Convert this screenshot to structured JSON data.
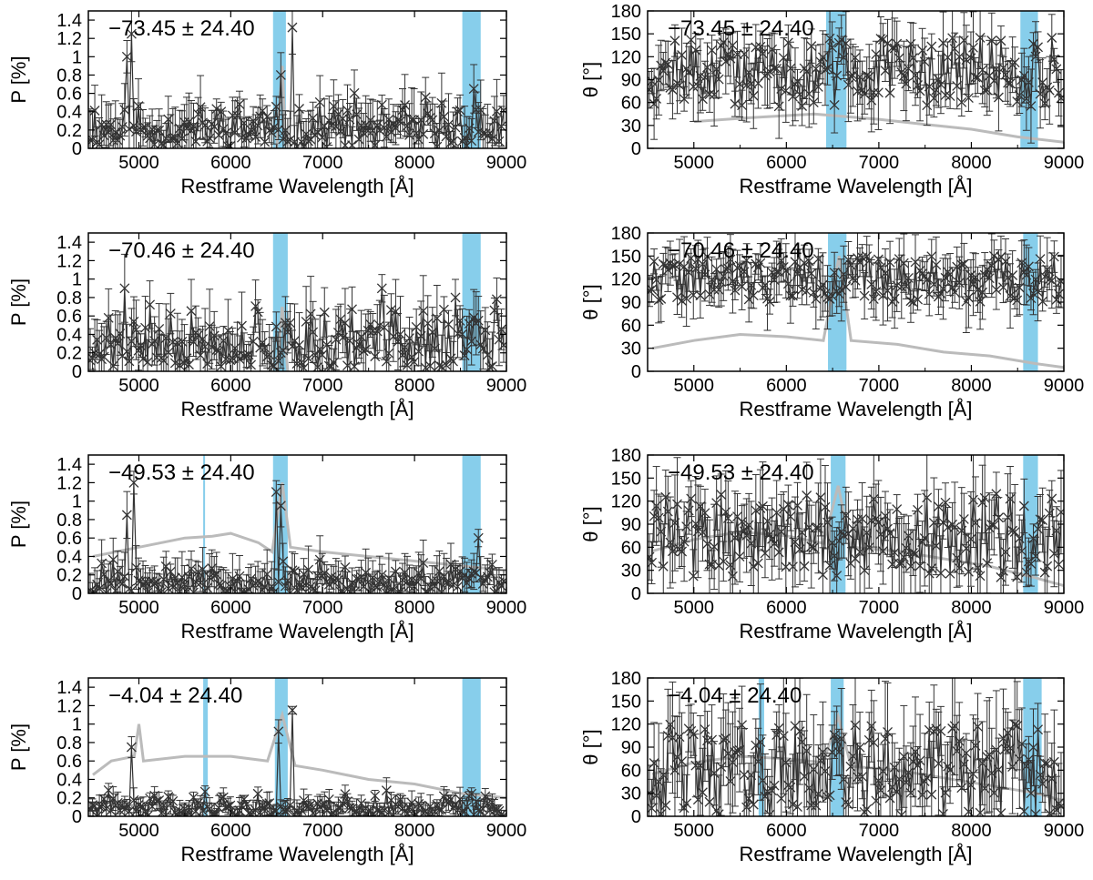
{
  "figure": {
    "xlabel": "Restframe Wavelength [Å]",
    "colors": {
      "data": "#333333",
      "spectrum": "#bbbbbb",
      "band": "#87ceeb",
      "frame": "#000000"
    }
  },
  "chart_data": [
    {
      "type": "scatter",
      "panel": "P-1",
      "quantity": "P",
      "seed": 11,
      "title": "",
      "xlabel": "Restframe Wavelength [Å]",
      "ylabel": "P [%]",
      "xlim": [
        4450,
        9000
      ],
      "ylim": [
        0,
        1.5
      ],
      "xticks": [
        5000,
        6000,
        7000,
        8000,
        9000
      ],
      "yticks": [
        0,
        0.2,
        0.4,
        0.6,
        0.8,
        1,
        1.2,
        1.4
      ],
      "annotation": "−73.45 ± 24.40",
      "bands": [
        [
          6460,
          6600
        ],
        [
          8520,
          8720
        ]
      ],
      "series": [
        {
          "name": "polarization",
          "base": 0.22,
          "spread": 0.2,
          "err": 0.25,
          "peaks": [
            [
              4920,
              1.25
            ],
            [
              4880,
              1.0
            ],
            [
              6680,
              1.32
            ],
            [
              6540,
              0.8
            ],
            [
              8650,
              0.65
            ]
          ]
        },
        {
          "name": "flux spectrum (scaled)",
          "points": [
            [
              6500,
              0.0
            ],
            [
              6560,
              0.9
            ],
            [
              6600,
              0.0
            ]
          ]
        }
      ]
    },
    {
      "type": "scatter",
      "panel": "theta-1",
      "quantity": "theta",
      "seed": 12,
      "title": "",
      "xlabel": "Restframe Wavelength [Å]",
      "ylabel": "θ [°]",
      "xlim": [
        4500,
        9000
      ],
      "ylim": [
        0,
        180
      ],
      "xticks": [
        5000,
        6000,
        7000,
        8000,
        9000
      ],
      "yticks": [
        0,
        30,
        60,
        90,
        120,
        150,
        180
      ],
      "annotation": "−73.45 ± 24.40",
      "bands": [
        [
          6430,
          6650
        ],
        [
          8530,
          8720
        ]
      ],
      "series": [
        {
          "name": "polarization angle",
          "base": 100,
          "spread": 45,
          "err": 35,
          "peaks": []
        },
        {
          "name": "flux spectrum (scaled)",
          "points": [
            [
              5000,
              35
            ],
            [
              5600,
              40
            ],
            [
              6300,
              45
            ],
            [
              7000,
              38
            ],
            [
              7600,
              30
            ],
            [
              8000,
              25
            ],
            [
              8500,
              15
            ],
            [
              9000,
              8
            ]
          ]
        }
      ]
    },
    {
      "type": "scatter",
      "panel": "P-2",
      "quantity": "P",
      "seed": 21,
      "title": "",
      "xlabel": "Restframe Wavelength [Å]",
      "ylabel": "P [%]",
      "xlim": [
        4450,
        9000
      ],
      "ylim": [
        0,
        1.5
      ],
      "xticks": [
        5000,
        6000,
        7000,
        8000,
        9000
      ],
      "yticks": [
        0,
        0.2,
        0.4,
        0.6,
        0.8,
        1,
        1.2,
        1.4
      ],
      "annotation": "−70.46 ± 24.40",
      "bands": [
        [
          6460,
          6620
        ],
        [
          8520,
          8720
        ]
      ],
      "series": [
        {
          "name": "polarization",
          "base": 0.3,
          "spread": 0.25,
          "err": 0.3,
          "peaks": [
            [
              4850,
              0.9
            ],
            [
              7650,
              0.9
            ],
            [
              8450,
              0.8
            ]
          ]
        },
        {
          "name": "flux spectrum (scaled)",
          "points": [
            [
              6500,
              0.0
            ],
            [
              6560,
              0.7
            ],
            [
              6620,
              0.0
            ]
          ]
        }
      ]
    },
    {
      "type": "scatter",
      "panel": "theta-2",
      "quantity": "theta",
      "seed": 22,
      "title": "",
      "xlabel": "Restframe Wavelength [Å]",
      "ylabel": "θ [°]",
      "xlim": [
        4500,
        9000
      ],
      "ylim": [
        0,
        180
      ],
      "xticks": [
        5000,
        6000,
        7000,
        8000,
        9000
      ],
      "yticks": [
        0,
        30,
        60,
        90,
        120,
        150,
        180
      ],
      "annotation": "−70.46 ± 24.40",
      "bands": [
        [
          6450,
          6650
        ],
        [
          8560,
          8720
        ]
      ],
      "series": [
        {
          "name": "polarization angle",
          "base": 120,
          "spread": 30,
          "err": 30,
          "peaks": []
        },
        {
          "name": "flux spectrum (scaled)",
          "points": [
            [
              4550,
              30
            ],
            [
              5000,
              40
            ],
            [
              5500,
              48
            ],
            [
              6000,
              45
            ],
            [
              6400,
              40
            ],
            [
              6570,
              150
            ],
            [
              6700,
              40
            ],
            [
              7200,
              35
            ],
            [
              7700,
              25
            ],
            [
              8200,
              20
            ],
            [
              8700,
              10
            ],
            [
              9000,
              5
            ]
          ]
        }
      ]
    },
    {
      "type": "scatter",
      "panel": "P-3",
      "quantity": "P",
      "seed": 31,
      "title": "",
      "xlabel": "Restframe Wavelength [Å]",
      "ylabel": "P [%]",
      "xlim": [
        4450,
        9000
      ],
      "ylim": [
        0,
        1.5
      ],
      "xticks": [
        5000,
        6000,
        7000,
        8000,
        9000
      ],
      "yticks": [
        0,
        0.2,
        0.4,
        0.6,
        0.8,
        1,
        1.2,
        1.4
      ],
      "annotation": "−49.53 ± 24.40",
      "bands": [
        [
          5700,
          5720
        ],
        [
          6460,
          6620
        ],
        [
          8520,
          8720
        ]
      ],
      "series": [
        {
          "name": "polarization",
          "base": 0.12,
          "spread": 0.14,
          "err": 0.2,
          "peaks": [
            [
              4950,
              1.2
            ],
            [
              4870,
              0.85
            ],
            [
              6500,
              1.1
            ],
            [
              6540,
              0.95
            ],
            [
              8700,
              0.6
            ]
          ]
        },
        {
          "name": "flux spectrum (scaled)",
          "points": [
            [
              4500,
              0.4
            ],
            [
              5000,
              0.5
            ],
            [
              5500,
              0.6
            ],
            [
              5800,
              0.62
            ],
            [
              6000,
              0.65
            ],
            [
              6300,
              0.55
            ],
            [
              6450,
              0.45
            ],
            [
              6560,
              1.2
            ],
            [
              6650,
              0.5
            ],
            [
              7000,
              0.45
            ],
            [
              7500,
              0.4
            ],
            [
              8000,
              0.35
            ],
            [
              8500,
              0.3
            ],
            [
              9000,
              0.25
            ]
          ]
        }
      ]
    },
    {
      "type": "scatter",
      "panel": "theta-3",
      "quantity": "theta",
      "seed": 32,
      "title": "",
      "xlabel": "Restframe Wavelength [Å]",
      "ylabel": "θ [°]",
      "xlim": [
        4500,
        9000
      ],
      "ylim": [
        0,
        180
      ],
      "xticks": [
        5000,
        6000,
        7000,
        8000,
        9000
      ],
      "yticks": [
        0,
        30,
        60,
        90,
        120,
        150,
        180
      ],
      "annotation": "−49.53 ± 24.40",
      "bands": [
        [
          6480,
          6640
        ],
        [
          8560,
          8720
        ]
      ],
      "series": [
        {
          "name": "polarization angle",
          "base": 75,
          "spread": 55,
          "err": 45,
          "peaks": []
        },
        {
          "name": "flux spectrum (scaled)",
          "points": [
            [
              4550,
              55
            ],
            [
              5000,
              70
            ],
            [
              5500,
              80
            ],
            [
              6000,
              75
            ],
            [
              6400,
              65
            ],
            [
              6560,
              140
            ],
            [
              6700,
              60
            ],
            [
              7200,
              55
            ],
            [
              7700,
              45
            ],
            [
              8200,
              35
            ],
            [
              8700,
              20
            ],
            [
              9000,
              10
            ]
          ]
        }
      ]
    },
    {
      "type": "scatter",
      "panel": "P-4",
      "quantity": "P",
      "seed": 41,
      "title": "",
      "xlabel": "Restframe Wavelength [Å]",
      "ylabel": "P [%]",
      "xlim": [
        4450,
        9000
      ],
      "ylim": [
        0,
        1.5
      ],
      "xticks": [
        5000,
        6000,
        7000,
        8000,
        9000
      ],
      "yticks": [
        0,
        0.2,
        0.4,
        0.6,
        0.8,
        1,
        1.2,
        1.4
      ],
      "annotation": "−4.04 ± 24.40",
      "bands": [
        [
          5700,
          5750
        ],
        [
          6480,
          6620
        ],
        [
          8520,
          8720
        ]
      ],
      "series": [
        {
          "name": "polarization",
          "base": 0.1,
          "spread": 0.1,
          "err": 0.1,
          "peaks": [
            [
              4920,
              0.75
            ],
            [
              6520,
              0.92
            ],
            [
              6670,
              1.15
            ]
          ]
        },
        {
          "name": "flux spectrum (scaled)",
          "points": [
            [
              4500,
              0.45
            ],
            [
              4700,
              0.6
            ],
            [
              4950,
              0.65
            ],
            [
              5000,
              1.0
            ],
            [
              5050,
              0.6
            ],
            [
              5500,
              0.65
            ],
            [
              6000,
              0.65
            ],
            [
              6400,
              0.6
            ],
            [
              6560,
              1.1
            ],
            [
              6700,
              0.55
            ],
            [
              7000,
              0.5
            ],
            [
              7500,
              0.4
            ],
            [
              8000,
              0.35
            ],
            [
              8500,
              0.25
            ],
            [
              9000,
              0.2
            ]
          ]
        }
      ]
    },
    {
      "type": "scatter",
      "panel": "theta-4",
      "quantity": "theta",
      "seed": 42,
      "title": "",
      "xlabel": "Restframe Wavelength [Å]",
      "ylabel": "θ [°]",
      "xlim": [
        4500,
        9000
      ],
      "ylim": [
        0,
        180
      ],
      "xticks": [
        5000,
        6000,
        7000,
        8000,
        9000
      ],
      "yticks": [
        0,
        30,
        60,
        90,
        120,
        150,
        180
      ],
      "annotation": "−4.04 ± 24.40",
      "bands": [
        [
          5700,
          5760
        ],
        [
          6480,
          6620
        ],
        [
          8560,
          8760
        ]
      ],
      "series": [
        {
          "name": "polarization angle",
          "base": 60,
          "spread": 60,
          "err": 55,
          "peaks": []
        },
        {
          "name": "flux spectrum (scaled)",
          "points": [
            [
              4550,
              55
            ],
            [
              5000,
              70
            ],
            [
              5500,
              78
            ],
            [
              6000,
              75
            ],
            [
              6400,
              70
            ],
            [
              6560,
              130
            ],
            [
              6700,
              65
            ],
            [
              7200,
              60
            ],
            [
              7700,
              50
            ],
            [
              8200,
              40
            ],
            [
              8700,
              30
            ],
            [
              9000,
              20
            ]
          ]
        }
      ]
    }
  ]
}
